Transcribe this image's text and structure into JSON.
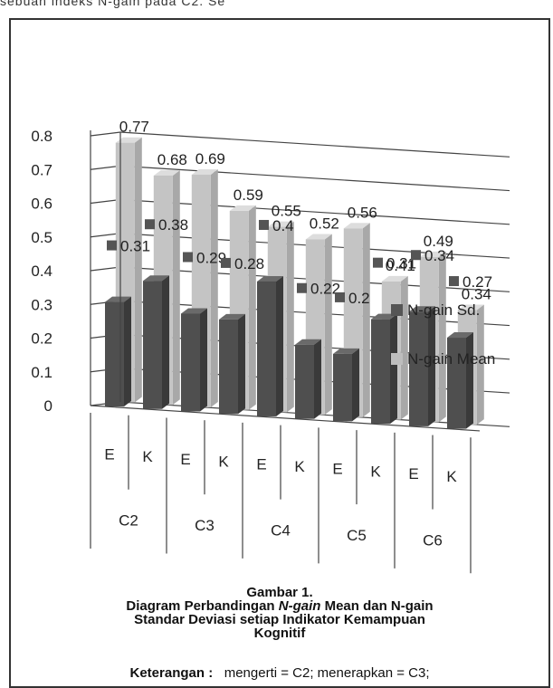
{
  "header_text": "sebuah indeks N-gain pada C2. Se",
  "chart_data": {
    "type": "bar",
    "subtype": "3d-clustered-column",
    "ylim": [
      0,
      0.8
    ],
    "yticks": [
      "0",
      "0.1",
      "0.2",
      "0.3",
      "0.4",
      "0.5",
      "0.6",
      "0.7",
      "0.8"
    ],
    "categories": [
      "E",
      "K",
      "E",
      "K",
      "E",
      "K",
      "E",
      "K",
      "E",
      "K"
    ],
    "groups": [
      "C2",
      "C3",
      "C4",
      "C5",
      "C6"
    ],
    "series": [
      {
        "name": "N-gain Sd.",
        "color": "#555555",
        "values": [
          0.31,
          0.38,
          0.29,
          0.28,
          0.4,
          0.22,
          0.2,
          0.31,
          0.34,
          0.27
        ],
        "labels": [
          "0.31",
          "0.38",
          "0.29",
          "0.28",
          "0.4",
          "0.22",
          "0.2",
          "0.31",
          "0.34",
          "0.27"
        ]
      },
      {
        "name": "N-gain Mean",
        "color": "#bdbdbd",
        "values": [
          0.77,
          0.68,
          0.69,
          0.59,
          0.55,
          0.52,
          0.56,
          0.41,
          0.49,
          0.34
        ],
        "labels": [
          "0.77",
          "0.68",
          "0.69",
          "0.59",
          "0.55",
          "0.52",
          "0.56",
          "0.41",
          "0.49",
          "0.34"
        ]
      }
    ],
    "legend": "right"
  },
  "caption": {
    "line1": "Gambar 1.",
    "line2_prefix": "Diagram Perbandingan ",
    "line2_italic": "N-gain",
    "line2_suffix": " Mean dan N-gain",
    "line3": "Standar Deviasi setiap Indikator Kemampuan",
    "line4": "Kognitif"
  },
  "notes": {
    "label": "Keterangan :",
    "text": "mengerti = C2; menerapkan = C3;"
  }
}
